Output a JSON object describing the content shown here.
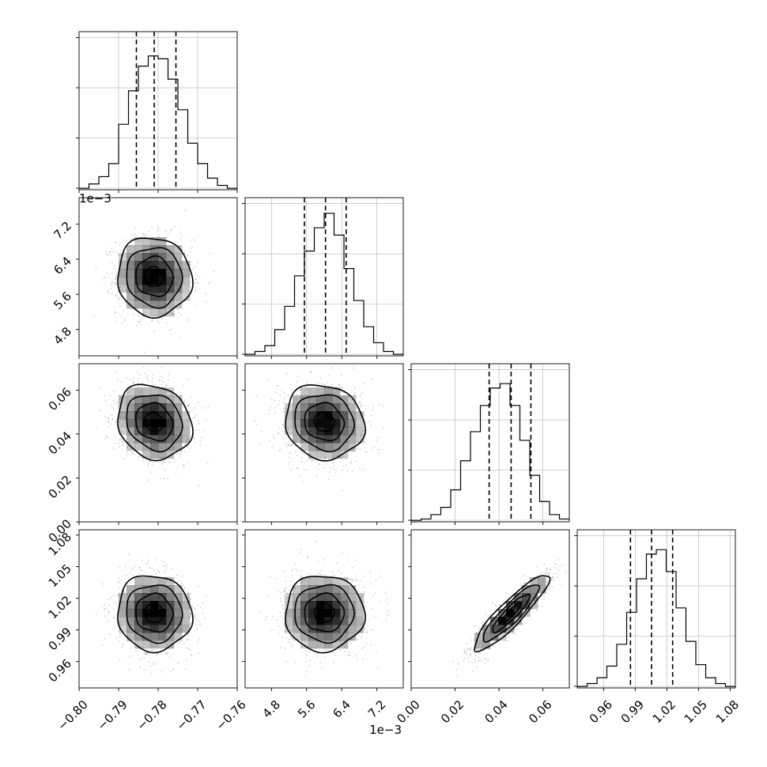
{
  "figure": {
    "type": "corner-plot",
    "offset_label": "1e−3"
  },
  "chart_data": {
    "type": "corner",
    "dimensions": [
      {
        "id": "p0",
        "range": [
          -0.8,
          -0.76
        ],
        "ticks": [
          -0.8,
          -0.79,
          -0.78,
          -0.77,
          -0.76
        ],
        "tick_labels": [
          "−0.80",
          "−0.79",
          "−0.78",
          "−0.77",
          "−0.76"
        ],
        "offset_label": "",
        "quantiles": [
          -0.7855,
          -0.781,
          -0.7755
        ],
        "hist_bins": [
          -0.8,
          -0.7975,
          -0.795,
          -0.7925,
          -0.79,
          -0.7875,
          -0.785,
          -0.7825,
          -0.78,
          -0.7775,
          -0.775,
          -0.7725,
          -0.77,
          -0.7675,
          -0.765,
          -0.7625,
          -0.76
        ],
        "hist_counts": [
          0.01,
          0.04,
          0.09,
          0.18,
          0.45,
          0.68,
          0.85,
          0.92,
          0.9,
          0.76,
          0.55,
          0.32,
          0.18,
          0.08,
          0.03,
          0.01
        ],
        "hist_max": 1.0
      },
      {
        "id": "p1",
        "range": [
          4.2,
          7.8
        ],
        "ticks": [
          4.8,
          5.6,
          6.4,
          7.2
        ],
        "tick_labels": [
          "4.8",
          "5.6",
          "6.4",
          "7.2"
        ],
        "offset_label": "1e−3",
        "quantiles": [
          5.55,
          6.03,
          6.5
        ],
        "hist_bins": [
          4.2,
          4.425,
          4.65,
          4.875,
          5.1,
          5.325,
          5.55,
          5.775,
          6.0,
          6.225,
          6.45,
          6.675,
          6.9,
          7.125,
          7.35,
          7.575,
          7.8
        ],
        "hist_counts": [
          0.01,
          0.03,
          0.07,
          0.18,
          0.34,
          0.55,
          0.72,
          0.88,
          0.98,
          0.83,
          0.6,
          0.38,
          0.2,
          0.09,
          0.03,
          0.01
        ],
        "hist_max": 1.0
      },
      {
        "id": "p2",
        "range": [
          0.0,
          0.072
        ],
        "ticks": [
          0.0,
          0.02,
          0.04,
          0.06
        ],
        "tick_labels": [
          "0.00",
          "0.02",
          "0.04",
          "0.06"
        ],
        "offset_label": "",
        "quantiles": [
          0.0355,
          0.0455,
          0.0545
        ],
        "hist_bins": [
          0.0,
          0.0045,
          0.009,
          0.0135,
          0.018,
          0.0225,
          0.027,
          0.0315,
          0.036,
          0.0405,
          0.045,
          0.0495,
          0.054,
          0.0585,
          0.063,
          0.0675,
          0.072
        ],
        "hist_counts": [
          0.01,
          0.02,
          0.05,
          0.1,
          0.22,
          0.42,
          0.62,
          0.8,
          0.92,
          0.95,
          0.8,
          0.56,
          0.32,
          0.14,
          0.05,
          0.02
        ],
        "hist_max": 1.0
      },
      {
        "id": "p3",
        "range": [
          0.935,
          1.085
        ],
        "ticks": [
          0.96,
          0.99,
          1.02,
          1.05,
          1.08
        ],
        "tick_labels": [
          "0.96",
          "0.99",
          "1.02",
          "1.05",
          "1.08"
        ],
        "offset_label": "",
        "quantiles": [
          0.9855,
          1.0055,
          1.0255
        ],
        "hist_bins": [
          0.935,
          0.9444,
          0.9538,
          0.9631,
          0.9725,
          0.9819,
          0.9913,
          1.0006,
          1.01,
          1.0194,
          1.0288,
          1.0381,
          1.0475,
          1.0569,
          1.0663,
          1.0756,
          1.085
        ],
        "hist_counts": [
          0.01,
          0.03,
          0.07,
          0.15,
          0.3,
          0.52,
          0.75,
          0.92,
          0.95,
          0.8,
          0.55,
          0.32,
          0.16,
          0.07,
          0.03,
          0.01
        ],
        "hist_max": 1.0
      }
    ],
    "pairs": [
      {
        "x": 0,
        "y": 1,
        "center": [
          -0.781,
          6.0
        ],
        "sigma": [
          0.0047,
          0.45
        ],
        "corr": -0.05
      },
      {
        "x": 0,
        "y": 2,
        "center": [
          -0.781,
          0.0455
        ],
        "sigma": [
          0.0047,
          0.0085
        ],
        "corr": -0.15
      },
      {
        "x": 1,
        "y": 2,
        "center": [
          6.0,
          0.0455
        ],
        "sigma": [
          0.45,
          0.0085
        ],
        "corr": -0.1
      },
      {
        "x": 0,
        "y": 3,
        "center": [
          -0.781,
          1.006
        ],
        "sigma": [
          0.0047,
          0.018
        ],
        "corr": -0.05
      },
      {
        "x": 1,
        "y": 3,
        "center": [
          6.0,
          1.006
        ],
        "sigma": [
          0.45,
          0.018
        ],
        "corr": 0.0
      },
      {
        "x": 2,
        "y": 3,
        "center": [
          0.0455,
          1.006
        ],
        "sigma": [
          0.0085,
          0.018
        ],
        "corr": 0.9
      }
    ],
    "contour_levels_sigma": [
      0.5,
      1.0,
      1.5,
      2.0
    ],
    "grid": true,
    "colors": {
      "line": "#000000",
      "grid": "#b0b0b0",
      "points": "#000000",
      "density": "#000000"
    }
  }
}
